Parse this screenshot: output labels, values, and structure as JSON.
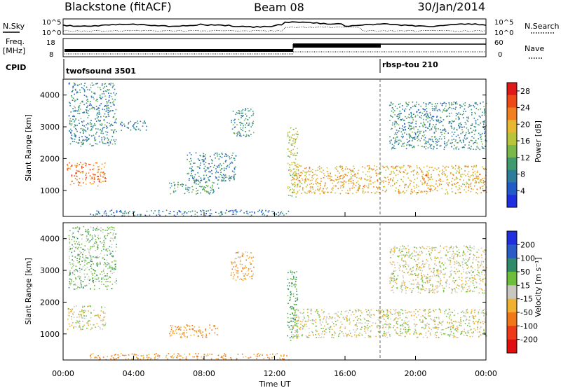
{
  "header": {
    "station": "Blackstone (fitACF)",
    "beam": "Beam 08",
    "date": "30/Jan/2014"
  },
  "top_panels": {
    "nsky_label": "N.Sky",
    "nsearch_label": "N.Search",
    "noise_ticks": [
      "10^5",
      "10^0"
    ],
    "freq_label_line1": "Freq.",
    "freq_label_line2": "[MHz]",
    "freq_ticks": [
      "18",
      "8"
    ],
    "nave_label": "Nave",
    "nave_ticks": [
      "60",
      "0"
    ],
    "cpid_label": "CPID",
    "cpid_segments": [
      {
        "name": "twofsound 3501",
        "start_hour": 0,
        "end_hour": 18
      },
      {
        "name": "rbsp-tou 210",
        "start_hour": 18,
        "end_hour": 24
      }
    ]
  },
  "chart_data": [
    {
      "type": "heatmap",
      "panel": "power",
      "ylabel": "Slant Range [km]",
      "xlabel": "Time UT",
      "x_ticks": [
        "00:00",
        "04:00",
        "08:00",
        "12:00",
        "16:00",
        "20:00",
        "00:00"
      ],
      "xlim_hours": [
        0,
        24
      ],
      "y_ticks": [
        1000,
        2000,
        3000,
        4000
      ],
      "ylim": [
        180,
        4500
      ],
      "colorbar": {
        "label": "Power [dB]",
        "ticks": [
          4,
          8,
          12,
          16,
          20,
          24,
          28
        ],
        "range": [
          0,
          30
        ],
        "colors": [
          "#1f2fe0",
          "#1f5cc8",
          "#2d7d9a",
          "#3f9a6e",
          "#7ab84a",
          "#b8c43a",
          "#e8b830",
          "#f08020",
          "#ee4a18",
          "#e01818"
        ]
      },
      "echo_regions": [
        {
          "t0": 0.2,
          "t1": 2.4,
          "r0": 1150,
          "r1": 1900,
          "level": 24
        },
        {
          "t0": 0.3,
          "t1": 3.0,
          "r0": 2400,
          "r1": 4400,
          "level": 8
        },
        {
          "t0": 3.2,
          "t1": 4.8,
          "r0": 2900,
          "r1": 3200,
          "level": 6
        },
        {
          "t0": 6.0,
          "t1": 8.8,
          "r0": 900,
          "r1": 1300,
          "level": 10
        },
        {
          "t0": 7.0,
          "t1": 9.8,
          "r0": 1300,
          "r1": 2200,
          "level": 7
        },
        {
          "t0": 9.5,
          "t1": 10.8,
          "r0": 2700,
          "r1": 3600,
          "level": 9
        },
        {
          "t0": 1.5,
          "t1": 12.8,
          "r0": 200,
          "r1": 400,
          "level": 6
        },
        {
          "t0": 12.7,
          "t1": 13.3,
          "r0": 800,
          "r1": 3000,
          "level": 16
        },
        {
          "t0": 13.0,
          "t1": 24.0,
          "r0": 900,
          "r1": 1800,
          "level": 20
        },
        {
          "t0": 18.5,
          "t1": 24.0,
          "r0": 2300,
          "r1": 3800,
          "level": 8
        }
      ]
    },
    {
      "type": "heatmap",
      "panel": "velocity",
      "ylabel": "Slant Range [km]",
      "xlabel": "Time UT",
      "x_ticks": [
        "00:00",
        "04:00",
        "08:00",
        "12:00",
        "16:00",
        "20:00",
        "00:00"
      ],
      "xlim_hours": [
        0,
        24
      ],
      "y_ticks": [
        1000,
        2000,
        3000,
        4000
      ],
      "ylim": [
        180,
        4500
      ],
      "colorbar": {
        "label": "Velocity [m s⁻¹]",
        "ticks": [
          200,
          100,
          50,
          15,
          -15,
          -50,
          -100,
          -200
        ],
        "colors": [
          "#1f2fe0",
          "#2a5cc8",
          "#2f8a6a",
          "#6dbf3a",
          "#c8c8c0",
          "#f0b030",
          "#f07818",
          "#ee3a18",
          "#e01010"
        ]
      },
      "echo_regions": [
        {
          "t0": 0.2,
          "t1": 2.4,
          "r0": 1150,
          "r1": 1900,
          "velocity": 0
        },
        {
          "t0": 0.3,
          "t1": 3.0,
          "r0": 2400,
          "r1": 4400,
          "velocity": 30
        },
        {
          "t0": 6.0,
          "t1": 8.8,
          "r0": 900,
          "r1": 1300,
          "velocity": -60
        },
        {
          "t0": 9.5,
          "t1": 10.8,
          "r0": 2700,
          "r1": 3600,
          "velocity": -40
        },
        {
          "t0": 1.5,
          "t1": 12.8,
          "r0": 200,
          "r1": 400,
          "velocity": -50
        },
        {
          "t0": 12.7,
          "t1": 13.3,
          "r0": 800,
          "r1": 3000,
          "velocity": 60
        },
        {
          "t0": 13.0,
          "t1": 24.0,
          "r0": 900,
          "r1": 1800,
          "velocity": 0
        },
        {
          "t0": 18.5,
          "t1": 24.0,
          "r0": 2300,
          "r1": 3800,
          "velocity": 0
        }
      ]
    }
  ]
}
